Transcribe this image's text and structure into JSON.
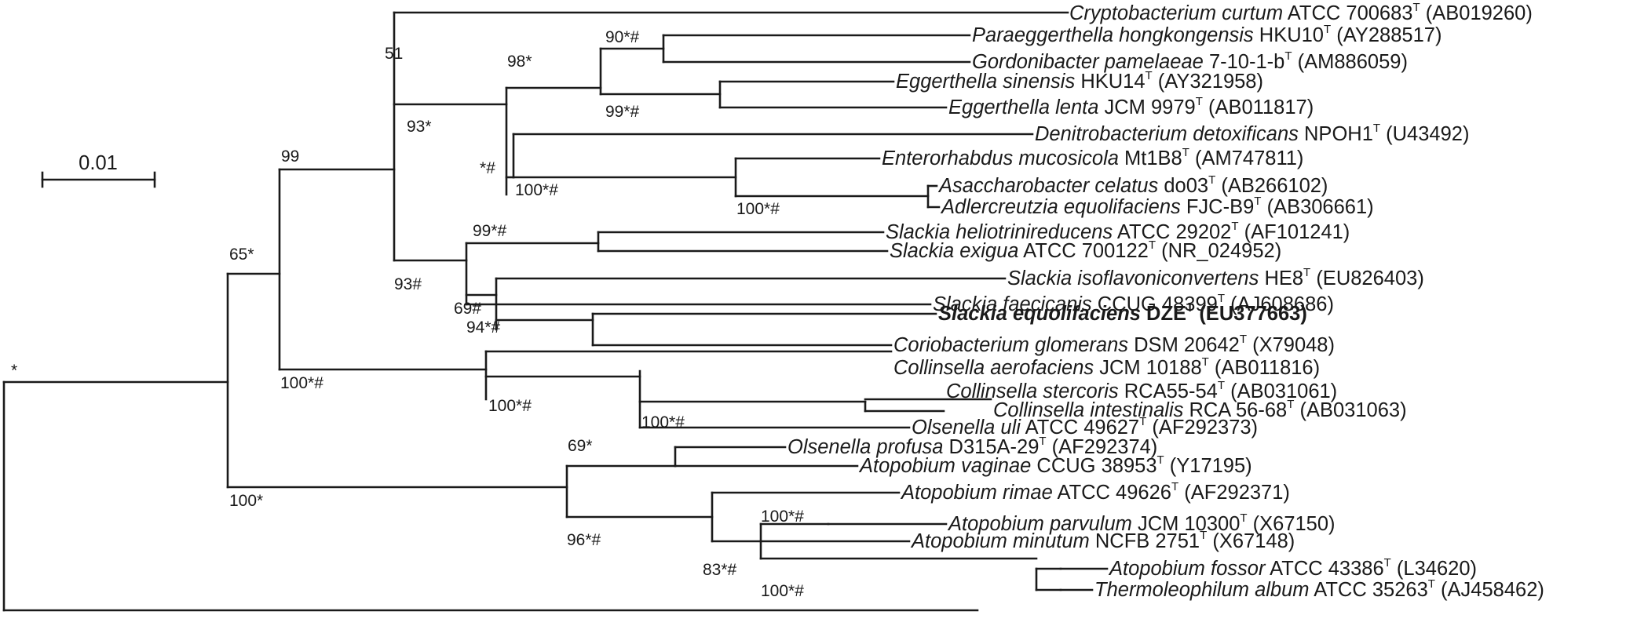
{
  "scale_bar": {
    "label": "0.01"
  },
  "taxa": {
    "t1": {
      "genus": "Cryptobacterium curtum",
      "strain": "ATCC 700683",
      "sup": "T",
      "acc": "(AB019260)"
    },
    "t2": {
      "genus": "Paraeggerthella hongkongensis",
      "strain": "HKU10",
      "sup": "T",
      "acc": "(AY288517)"
    },
    "t3": {
      "genus": "Gordonibacter pamelaeae",
      "strain": "7-10-1-b",
      "sup": "T",
      "acc": "(AM886059)"
    },
    "t4": {
      "genus": "Eggerthella sinensis",
      "strain": "HKU14",
      "sup": "T",
      "acc": "(AY321958)"
    },
    "t5": {
      "genus": "Eggerthella lenta",
      "strain": "JCM 9979",
      "sup": "T",
      "acc": "(AB011817)"
    },
    "t6": {
      "genus": "Denitrobacterium detoxificans",
      "strain": "NPOH1",
      "sup": "T",
      "acc": "(U43492)"
    },
    "t7": {
      "genus": "Enterorhabdus mucosicola",
      "strain": "Mt1B8",
      "sup": "T",
      "acc": "(AM747811)"
    },
    "t8": {
      "genus": "Asaccharobacter celatus",
      "strain": "do03",
      "sup": "T",
      "acc": "(AB266102)"
    },
    "t9": {
      "genus": "Adlercreutzia equolifaciens",
      "strain": "FJC-B9",
      "sup": "T",
      "acc": "(AB306661)"
    },
    "t10": {
      "genus": "Slackia heliotrinireducens",
      "strain": "ATCC 29202",
      "sup": "T",
      "acc": "(AF101241)"
    },
    "t11": {
      "genus": "Slackia exigua",
      "strain": "ATCC 700122",
      "sup": "T",
      "acc": "(NR_024952)"
    },
    "t12": {
      "genus": "Slackia isoflavoniconvertens",
      "strain": "HE8",
      "sup": "T",
      "acc": "(EU826403)"
    },
    "t13": {
      "genus": "Slackia faecicanis",
      "strain": "CCUG 48399",
      "sup": "T",
      "acc": "(AJ608686)"
    },
    "t14": {
      "genus": "Slackia equolifaciens",
      "strain": "DZE",
      "sup": "T",
      "acc": "(EU377663)"
    },
    "t15": {
      "genus": "Coriobacterium glomerans",
      "strain": "DSM 20642",
      "sup": "T",
      "acc": "(X79048)"
    },
    "t16": {
      "genus": "Collinsella aerofaciens",
      "strain": "JCM 10188",
      "sup": "T",
      "acc": "(AB011816)"
    },
    "t17": {
      "genus": "Collinsella stercoris",
      "strain": "RCA55-54",
      "sup": "T",
      "acc": "(AB031061)"
    },
    "t18": {
      "genus": "Collinsella intestinalis",
      "strain": "RCA 56-68",
      "sup": "T",
      "acc": "(AB031063)"
    },
    "t19": {
      "genus": "Olsenella uli",
      "strain": "ATCC 49627",
      "sup": "T",
      "acc": "(AF292373)"
    },
    "t20": {
      "genus": "Olsenella profusa",
      "strain": "D315A-29",
      "sup": "T",
      "acc": "(AF292374)"
    },
    "t21": {
      "genus": "Atopobium vaginae",
      "strain": "CCUG 38953",
      "sup": "T",
      "acc": "(Y17195)"
    },
    "t22": {
      "genus": "Atopobium rimae",
      "strain": "ATCC 49626",
      "sup": "T",
      "acc": "(AF292371)"
    },
    "t23": {
      "genus": "Atopobium parvulum",
      "strain": "JCM 10300",
      "sup": "T",
      "acc": "(X67150)"
    },
    "t24": {
      "genus": "Atopobium minutum",
      "strain": "NCFB 2751",
      "sup": "T",
      "acc": "(X67148)"
    },
    "t25": {
      "genus": "Atopobium fossor",
      "strain": "ATCC 43386",
      "sup": "T",
      "acc": "(L34620)"
    },
    "t26": {
      "genus": "Thermoleophilum album",
      "strain": "ATCC 35263",
      "sup": "T",
      "acc": "(AJ458462)"
    }
  },
  "supports": {
    "root": {
      "num": "",
      "star": "*",
      "hash": ""
    },
    "n65": {
      "num": "65",
      "star": "*",
      "hash": ""
    },
    "n99": {
      "num": "99",
      "star": "",
      "hash": ""
    },
    "n51": {
      "num": "51",
      "star": "",
      "hash": ""
    },
    "n93a": {
      "num": "93",
      "star": "*",
      "hash": ""
    },
    "n98": {
      "num": "98",
      "star": "*",
      "hash": ""
    },
    "n90": {
      "num": "90",
      "star": "*",
      "hash": "#"
    },
    "n99e": {
      "num": "99",
      "star": "*",
      "hash": "#"
    },
    "nsh": {
      "num": "",
      "star": "*",
      "hash": "#"
    },
    "n100en": {
      "num": "100",
      "star": "*",
      "hash": "#"
    },
    "n100ad": {
      "num": "100",
      "star": "*",
      "hash": "#"
    },
    "n93b": {
      "num": "93",
      "star": "",
      "hash": "#"
    },
    "n99sl": {
      "num": "99",
      "star": "*",
      "hash": "#"
    },
    "n69sl": {
      "num": "69",
      "star": "",
      "hash": "#"
    },
    "n94": {
      "num": "94",
      "star": "*",
      "hash": "#"
    },
    "n100cc": {
      "num": "100",
      "star": "*",
      "hash": "#"
    },
    "n100co": {
      "num": "100",
      "star": "*",
      "hash": "#"
    },
    "n100cs": {
      "num": "100",
      "star": "*",
      "hash": "#"
    },
    "n100ol": {
      "num": "100",
      "star": "*",
      "hash": ""
    },
    "n69ol": {
      "num": "69",
      "star": "*",
      "hash": ""
    },
    "n96": {
      "num": "96",
      "star": "*",
      "hash": "#"
    },
    "n83": {
      "num": "83",
      "star": "*",
      "hash": "#"
    },
    "n100rp": {
      "num": "100",
      "star": "*",
      "hash": "#"
    },
    "n100mf": {
      "num": "100",
      "star": "*",
      "hash": "#"
    }
  }
}
